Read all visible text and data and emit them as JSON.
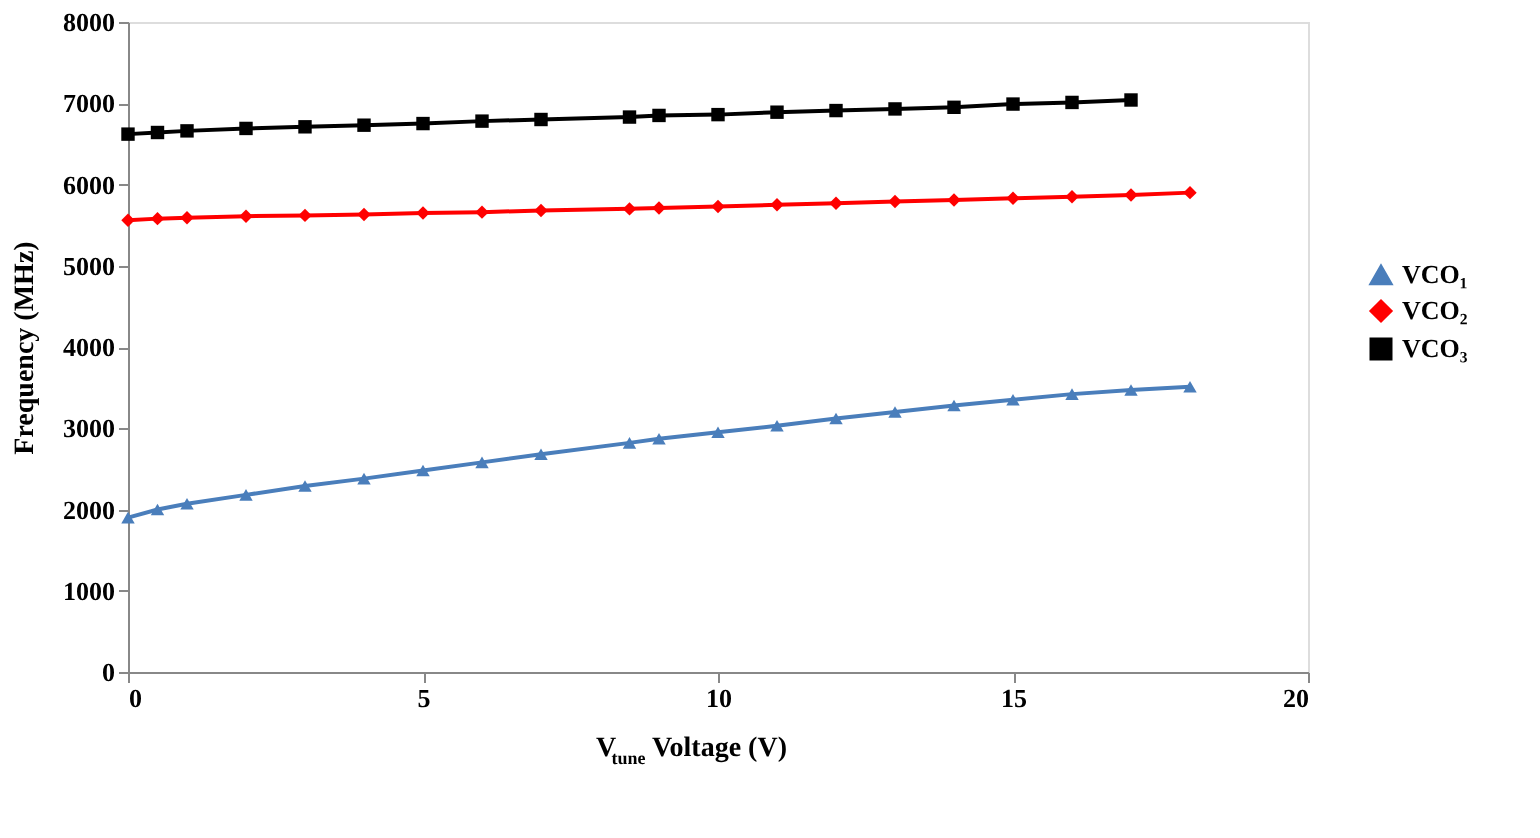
{
  "chart_data": {
    "type": "line",
    "xlabel": "V$_{tune}$ Voltage (V)",
    "ylabel": "Frequency (MHz)",
    "x": [
      0,
      0.5,
      1,
      2,
      3,
      4,
      5,
      6,
      7,
      8.5,
      9,
      10,
      11,
      12,
      13,
      14,
      15,
      16,
      17,
      18
    ],
    "series": [
      {
        "name": "VCO₁",
        "color": "#4a7ebb",
        "marker": "triangle",
        "values": [
          1900,
          2000,
          2070,
          2180,
          2290,
          2380,
          2480,
          2580,
          2680,
          2820,
          2870,
          2950,
          3030,
          3120,
          3200,
          3280,
          3350,
          3420,
          3470,
          3510
        ]
      },
      {
        "name": "VCO₂",
        "color": "#ff0000",
        "marker": "diamond",
        "values": [
          5560,
          5580,
          5590,
          5610,
          5620,
          5630,
          5650,
          5660,
          5680,
          5700,
          5710,
          5730,
          5750,
          5770,
          5790,
          5810,
          5830,
          5850,
          5870,
          5900
        ]
      },
      {
        "name": "VCO₃",
        "color": "#000000",
        "marker": "square",
        "values": [
          6620,
          6640,
          6660,
          6690,
          6710,
          6730,
          6750,
          6780,
          6800,
          6830,
          6850,
          6860,
          6890,
          6910,
          6930,
          6950,
          6990,
          7010,
          7040,
          null
        ]
      }
    ],
    "xlim": [
      0,
      20
    ],
    "xticks": [
      0,
      5,
      10,
      15,
      20
    ],
    "ylim": [
      0,
      8000
    ],
    "yticks": [
      0,
      1000,
      2000,
      3000,
      4000,
      5000,
      6000,
      7000,
      8000
    ],
    "grid": false,
    "legend": "right",
    "line_style": "solid"
  }
}
